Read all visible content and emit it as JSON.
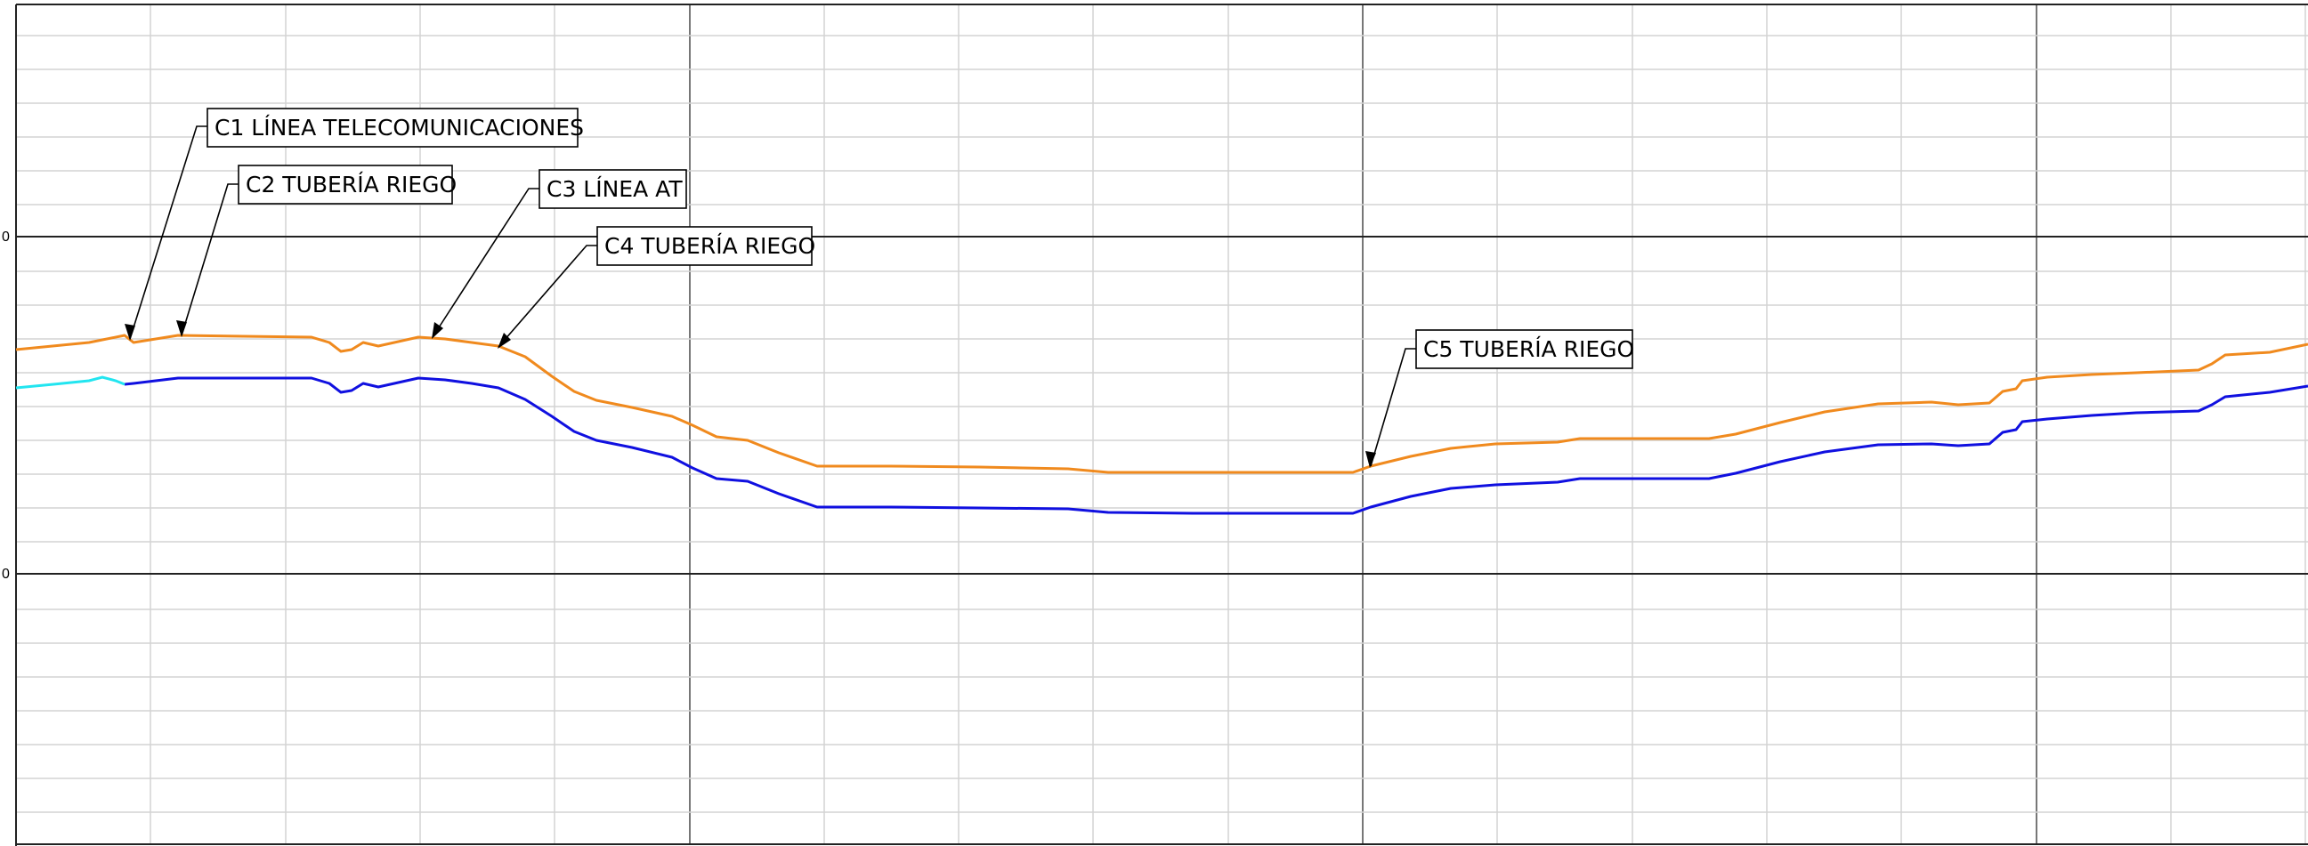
{
  "drawing": {
    "type": "longitudinal-profile",
    "left_axis_labels": [
      "0",
      "0"
    ],
    "lines": {
      "upper_profile_color": "#f08a1e",
      "lower_profile_color": "#1010e0",
      "lower_profile_start_color": "#22e5f0"
    },
    "grid": {
      "minor_color": "#d4d4d4",
      "major_color": "#777777",
      "horizontal_major_color": "#222222"
    }
  },
  "callouts": [
    {
      "label": "C1 LÍNEA TELECOMUNICACIONES"
    },
    {
      "label": "C2 TUBERÍA RIEGO"
    },
    {
      "label": "C3 LÍNEA AT"
    },
    {
      "label": "C4 TUBERÍA RIEGO"
    },
    {
      "label": "C5 TUBERÍA RIEGO"
    }
  ]
}
